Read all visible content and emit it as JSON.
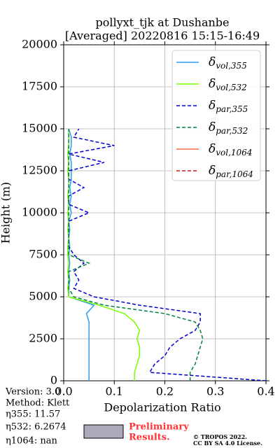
{
  "chart_data": {
    "type": "line",
    "title": [
      "pollyxt_tjk at Dushanbe",
      "[Averaged] 20220816 15:15-16:49"
    ],
    "x_label": "Depolarization Ratio",
    "y_label": "Height (m)",
    "xlim": [
      0,
      0.4
    ],
    "xticks": [
      {
        "value": 0,
        "label": "0.0"
      },
      0.1,
      0.2,
      0.3,
      0.4
    ],
    "ylim": [
      0,
      20000
    ],
    "yticks": [
      0,
      2500,
      5000,
      7500,
      10000,
      12500,
      15000,
      17500,
      20000
    ],
    "grid": true,
    "legend": "upper right",
    "y": [
      0,
      500,
      1000,
      1500,
      2000,
      2500,
      3000,
      3500,
      4000,
      4500,
      5000,
      5500,
      6000,
      6500,
      7000,
      7500,
      8000,
      8500,
      9000,
      9500,
      10000,
      10500,
      11000,
      11500,
      12000,
      12500,
      13000,
      13500,
      14000,
      14500,
      15000
    ],
    "series": [
      {
        "name": "δvol,355",
        "color": "#2a9df4",
        "dash": false,
        "values": [
          0.05,
          0.05,
          0.05,
          0.05,
          0.05,
          0.05,
          0.05,
          0.05,
          0.045,
          0.06,
          0.01,
          0.01,
          0.012,
          0.01,
          0.012,
          0.01,
          0.012,
          0.01,
          0.012,
          0.01,
          0.015,
          0.012,
          0.015,
          0.012,
          0.015,
          0.015,
          0.015,
          0.012,
          0.015,
          0.015,
          0.01
        ]
      },
      {
        "name": "δvol,532",
        "color": "#7cfc00",
        "dash": false,
        "values": [
          0.14,
          0.14,
          0.145,
          0.15,
          0.15,
          0.145,
          0.15,
          0.14,
          0.12,
          0.07,
          0.01,
          0.008,
          0.01,
          0.008,
          0.01,
          0.008,
          0.008,
          0.01,
          0.008,
          0.01,
          0.008,
          0.01,
          0.008,
          0.01,
          0.01,
          0.008,
          0.01,
          0.008,
          0.01,
          0.01,
          0.01
        ]
      },
      {
        "name": "δpar,355",
        "color": "#0000cd",
        "dash": true,
        "values": [
          0.4,
          0.17,
          0.18,
          0.2,
          0.21,
          0.23,
          0.26,
          0.27,
          0.27,
          0.15,
          0.06,
          0.02,
          0.03,
          0.02,
          0.04,
          0.02,
          0.01,
          0.01,
          0.01,
          0.01,
          0.05,
          0.01,
          0.01,
          0.04,
          0.01,
          0.01,
          0.08,
          0.01,
          0.1,
          0.02,
          0.03
        ]
      },
      {
        "name": "δpar,532",
        "color": "#008040",
        "dash": true,
        "values": [
          0.25,
          0.25,
          0.26,
          0.265,
          0.27,
          0.275,
          0.27,
          0.26,
          0.2,
          0.08,
          0.02,
          0.01,
          0.01,
          0.01,
          0.05,
          0.01,
          0.01,
          0.01,
          0.01,
          0.01,
          0.01,
          0.01,
          0.01,
          0.01,
          0.01,
          0.01,
          0.01,
          0.01,
          0.01,
          0.01,
          0.01
        ]
      },
      {
        "name": "δvol,1064",
        "color": "#f46d43",
        "dash": false,
        "values": [
          null,
          null,
          null,
          null,
          null,
          null,
          null,
          null,
          null,
          null,
          null,
          null,
          null,
          null,
          null,
          null,
          null,
          null,
          null,
          null,
          null,
          null,
          null,
          null,
          null,
          null,
          null,
          null,
          null,
          null,
          null
        ]
      },
      {
        "name": "δpar,1064",
        "color": "#d7191c",
        "dash": true,
        "values": [
          null,
          null,
          null,
          null,
          null,
          null,
          null,
          null,
          null,
          null,
          null,
          null,
          null,
          null,
          null,
          null,
          null,
          null,
          null,
          null,
          null,
          null,
          null,
          null,
          null,
          null,
          null,
          null,
          null,
          null,
          null
        ]
      }
    ],
    "info": [
      "Version: 3.0",
      "Method: Klett",
      "η355:  11.57",
      "η532: 6.2674",
      "η1064:    nan"
    ],
    "preliminary": [
      "Preliminary",
      "Results."
    ],
    "license": [
      "© TROPOS 2022.",
      "CC BY SA 4.0 License."
    ]
  }
}
